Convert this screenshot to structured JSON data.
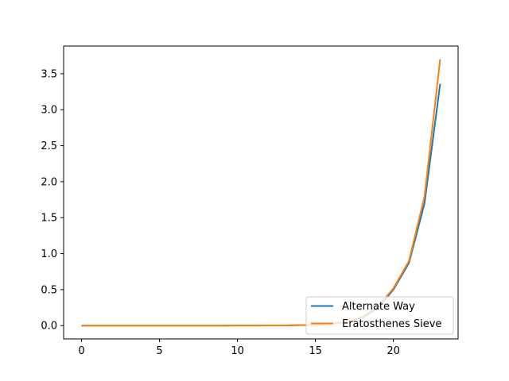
{
  "chart_data": {
    "type": "line",
    "title": "",
    "xlabel": "",
    "ylabel": "",
    "xlim": [
      -1.15,
      24.15
    ],
    "ylim": [
      -0.185,
      3.885
    ],
    "grid": false,
    "legend_position": "lower right",
    "x_ticks": [
      0,
      5,
      10,
      15,
      20
    ],
    "x_tick_labels": [
      "0",
      "5",
      "10",
      "15",
      "20"
    ],
    "y_ticks": [
      0.0,
      0.5,
      1.0,
      1.5,
      2.0,
      2.5,
      3.0,
      3.5
    ],
    "y_tick_labels": [
      "0.0",
      "0.5",
      "1.0",
      "1.5",
      "2.0",
      "2.5",
      "3.0",
      "3.5"
    ],
    "x": [
      0,
      1,
      2,
      3,
      4,
      5,
      6,
      7,
      8,
      9,
      10,
      11,
      12,
      13,
      14,
      15,
      16,
      17,
      18,
      19,
      20,
      21,
      22,
      23
    ],
    "series": [
      {
        "name": "Alternate Way",
        "color": "#1f77b4",
        "values": [
          0,
          0,
          0,
          0,
          0,
          0,
          0,
          0,
          0,
          0,
          0.001,
          0.001,
          0.002,
          0.003,
          0.006,
          0.012,
          0.025,
          0.05,
          0.11,
          0.24,
          0.5,
          0.87,
          1.7,
          3.36
        ]
      },
      {
        "name": "Eratosthenes Sieve",
        "color": "#ff7f0e",
        "values": [
          0,
          0,
          0,
          0,
          0,
          0,
          0,
          0,
          0,
          0,
          0.001,
          0.001,
          0.002,
          0.003,
          0.006,
          0.013,
          0.027,
          0.055,
          0.12,
          0.26,
          0.52,
          0.9,
          1.8,
          3.7
        ]
      }
    ]
  }
}
